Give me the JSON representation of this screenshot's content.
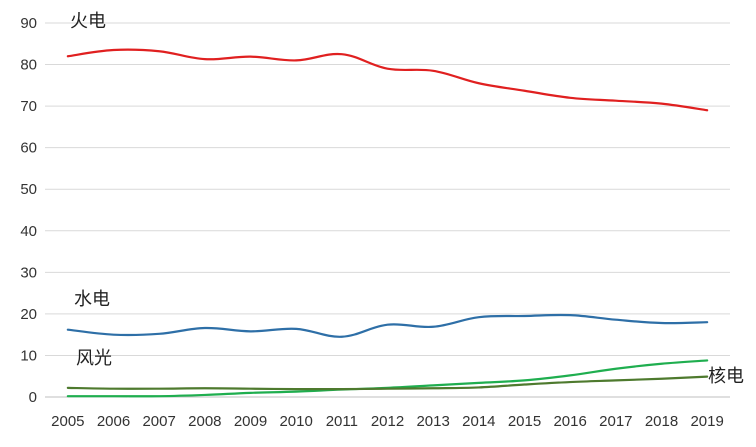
{
  "chart_data": {
    "type": "line",
    "title": "",
    "xlabel": "",
    "ylabel": "",
    "x": [
      "2005",
      "2006",
      "2007",
      "2008",
      "2009",
      "2010",
      "2011",
      "2012",
      "2013",
      "2014",
      "2015",
      "2016",
      "2017",
      "2018",
      "2019"
    ],
    "ylim": [
      0,
      90
    ],
    "yticks": [
      0,
      10,
      20,
      30,
      40,
      50,
      60,
      70,
      80,
      90
    ],
    "grid": true,
    "legend": "none",
    "series": [
      {
        "name": "火电",
        "color": "#e02020",
        "values": [
          82,
          83.5,
          83.2,
          81.3,
          81.9,
          81.0,
          82.5,
          79.0,
          78.5,
          75.5,
          73.7,
          72.0,
          71.3,
          70.6,
          69.0
        ]
      },
      {
        "name": "水电",
        "color": "#2e6fa7",
        "values": [
          16.2,
          15.0,
          15.2,
          16.6,
          15.8,
          16.4,
          14.5,
          17.4,
          16.9,
          19.2,
          19.5,
          19.7,
          18.6,
          17.8,
          18.0
        ]
      },
      {
        "name": "风光",
        "color": "#1fae4f",
        "values": [
          0.2,
          0.2,
          0.2,
          0.5,
          1.0,
          1.3,
          1.8,
          2.2,
          2.8,
          3.4,
          4.0,
          5.2,
          6.8,
          8.0,
          8.8
        ]
      },
      {
        "name": "核电",
        "color": "#4e7a2e",
        "values": [
          2.2,
          2.0,
          2.0,
          2.1,
          2.0,
          1.9,
          1.9,
          2.0,
          2.1,
          2.3,
          3.0,
          3.6,
          4.0,
          4.4,
          4.9
        ]
      }
    ]
  }
}
